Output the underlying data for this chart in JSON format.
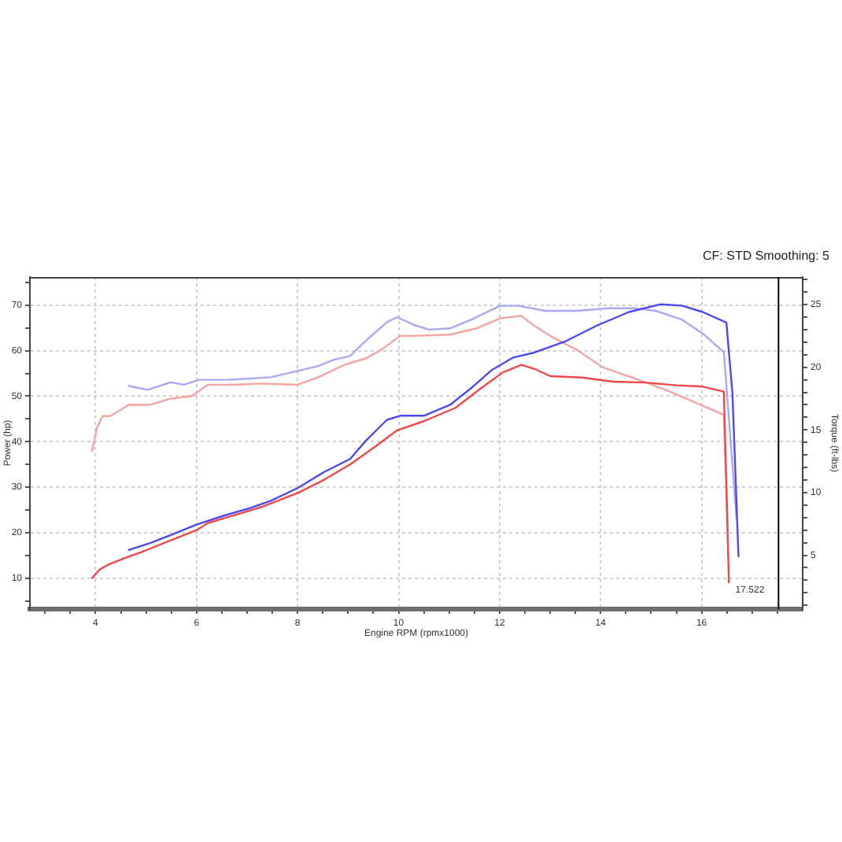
{
  "chart_data": {
    "type": "line",
    "subtitle": "CF: STD Smoothing: 5",
    "xlabel": "Engine RPM (rpmx1000)",
    "ylabel": "Power (hp)",
    "y2label": "Torque (ft-lbs)",
    "xlim": [
      2.7,
      18.0
    ],
    "ylim": [
      3.2,
      76.2
    ],
    "y2lim": [
      0.7,
      27.2
    ],
    "xticks": [
      {
        "value": 3,
        "label": null
      },
      {
        "value": 3.5,
        "label": null
      },
      4,
      {
        "value": 4.5,
        "label": null
      },
      {
        "value": 5,
        "label": null
      },
      {
        "value": 5.5,
        "label": null
      },
      6,
      {
        "value": 6.5,
        "label": null
      },
      {
        "value": 7,
        "label": null
      },
      {
        "value": 7.5,
        "label": null
      },
      8,
      {
        "value": 8.5,
        "label": null
      },
      {
        "value": 9,
        "label": null
      },
      {
        "value": 9.5,
        "label": null
      },
      10,
      {
        "value": 10.5,
        "label": null
      },
      {
        "value": 11,
        "label": null
      },
      {
        "value": 11.5,
        "label": null
      },
      12,
      {
        "value": 12.5,
        "label": null
      },
      {
        "value": 13,
        "label": null
      },
      {
        "value": 13.5,
        "label": null
      },
      14,
      {
        "value": 14.5,
        "label": null
      },
      {
        "value": 15,
        "label": null
      },
      {
        "value": 15.5,
        "label": null
      },
      16,
      {
        "value": 16.5,
        "label": null
      },
      {
        "value": 17,
        "label": null
      },
      {
        "value": 17.5,
        "label": null
      }
    ],
    "yticks": [
      {
        "value": 5,
        "label": null
      },
      10,
      {
        "value": 15,
        "label": null
      },
      20,
      {
        "value": 25,
        "label": null
      },
      30,
      {
        "value": 35,
        "label": null
      },
      40,
      {
        "value": 45,
        "label": null
      },
      50,
      {
        "value": 55,
        "label": null
      },
      60,
      {
        "value": 65,
        "label": null
      },
      70,
      {
        "value": 75,
        "label": null
      }
    ],
    "y2ticks": [
      {
        "value": 1,
        "label": null
      },
      {
        "value": 2,
        "label": null
      },
      {
        "value": 3,
        "label": null
      },
      {
        "value": 4,
        "label": null
      },
      5,
      {
        "value": 6,
        "label": null
      },
      {
        "value": 7,
        "label": null
      },
      {
        "value": 8,
        "label": null
      },
      {
        "value": 9,
        "label": null
      },
      10,
      {
        "value": 11,
        "label": null
      },
      {
        "value": 12,
        "label": null
      },
      {
        "value": 13,
        "label": null
      },
      {
        "value": 14,
        "label": null
      },
      15,
      {
        "value": 16,
        "label": null
      },
      {
        "value": 17,
        "label": null
      },
      {
        "value": 18,
        "label": null
      },
      {
        "value": 19,
        "label": null
      },
      20,
      {
        "value": 21,
        "label": null
      },
      {
        "value": 22,
        "label": null
      },
      {
        "value": 23,
        "label": null
      },
      {
        "value": 24,
        "label": null
      },
      25,
      {
        "value": 26,
        "label": null
      },
      {
        "value": 27,
        "label": null
      }
    ],
    "grid": true,
    "ref_lines": [
      {
        "axis": "x",
        "value": 17.522,
        "label": "17.522",
        "color": "#000000"
      }
    ],
    "series": [
      {
        "color": "#4a4af0",
        "x": [
          4.66,
          5.08,
          5.49,
          6.01,
          6.53,
          7.06,
          7.47,
          8.0,
          8.52,
          9.04,
          9.35,
          9.77,
          10.03,
          10.5,
          11.02,
          11.44,
          11.85,
          12.27,
          12.69,
          13.31,
          13.94,
          14.56,
          15.19,
          15.61,
          16.02,
          16.49,
          16.61,
          16.73
        ],
        "values": [
          16.2,
          17.7,
          19.5,
          21.8,
          23.7,
          25.4,
          27.0,
          29.8,
          33.3,
          36.2,
          40.2,
          44.8,
          45.7,
          45.7,
          48.1,
          51.8,
          55.8,
          58.5,
          59.6,
          62.1,
          65.6,
          68.5,
          70.2,
          69.9,
          68.5,
          66.2,
          50.6,
          14.8
        ]
      },
      {
        "color": "#f04848",
        "x": [
          3.93,
          4.08,
          4.24,
          4.55,
          4.97,
          5.49,
          6.01,
          6.22,
          6.74,
          7.27,
          8.0,
          8.52,
          9.04,
          9.56,
          9.97,
          10.5,
          11.12,
          11.64,
          12.06,
          12.43,
          12.69,
          13.0,
          13.63,
          14.25,
          14.88,
          15.5,
          16.02,
          16.44,
          16.54
        ],
        "values": [
          10.0,
          11.9,
          12.9,
          14.3,
          16.0,
          18.3,
          20.6,
          22.1,
          23.8,
          25.6,
          28.7,
          31.6,
          35.0,
          39.1,
          42.5,
          44.5,
          47.4,
          51.8,
          55.2,
          56.9,
          56.0,
          54.4,
          54.1,
          53.2,
          53.0,
          52.4,
          52.1,
          51.0,
          9.1
        ]
      },
      {
        "color": "#a9a9f5",
        "axis": "y2",
        "x": [
          4.66,
          5.03,
          5.49,
          5.75,
          6.05,
          6.64,
          7.06,
          7.47,
          8.0,
          8.41,
          8.72,
          9.04,
          9.35,
          9.77,
          9.97,
          10.29,
          10.6,
          11.02,
          11.44,
          12.01,
          12.38,
          12.9,
          13.52,
          14.15,
          14.67,
          15.09,
          15.61,
          16.02,
          16.44,
          16.69
        ],
        "values": [
          18.5,
          18.2,
          18.8,
          18.6,
          19.0,
          19.0,
          19.1,
          19.2,
          19.7,
          20.1,
          20.6,
          20.9,
          22.1,
          23.6,
          24.0,
          23.4,
          23.0,
          23.1,
          23.8,
          24.9,
          24.9,
          24.5,
          24.5,
          24.7,
          24.7,
          24.5,
          23.8,
          22.7,
          21.2,
          7.9
        ]
      },
      {
        "color": "#f5a3a3",
        "axis": "y2",
        "x": [
          3.93,
          4.03,
          4.14,
          4.29,
          4.66,
          5.08,
          5.49,
          5.91,
          6.22,
          6.74,
          7.27,
          8.0,
          8.41,
          8.93,
          9.35,
          9.66,
          10.03,
          10.29,
          11.02,
          11.54,
          12.01,
          12.43,
          12.69,
          13.0,
          13.52,
          14.04,
          14.67,
          15.29,
          15.92,
          16.44,
          16.52
        ],
        "values": [
          13.3,
          15.2,
          16.1,
          16.1,
          17.0,
          17.0,
          17.5,
          17.7,
          18.6,
          18.6,
          18.7,
          18.6,
          19.2,
          20.2,
          20.7,
          21.4,
          22.5,
          22.5,
          22.6,
          23.1,
          23.9,
          24.1,
          23.3,
          22.5,
          21.4,
          20.0,
          19.1,
          18.2,
          17.1,
          16.2,
          6.6
        ]
      }
    ]
  }
}
